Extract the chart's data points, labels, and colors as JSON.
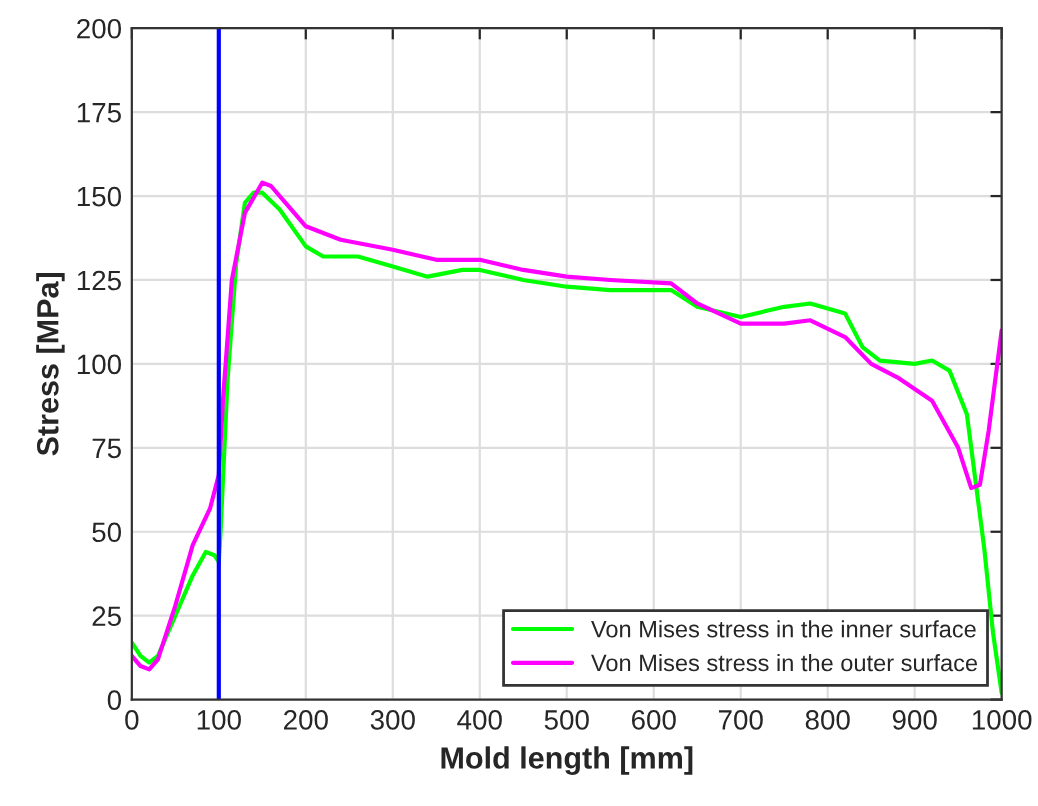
{
  "chart_data": {
    "type": "line",
    "xlabel": "Mold length [mm]",
    "ylabel": "Stress [MPa]",
    "xlim": [
      0,
      1000
    ],
    "xticks": [
      0,
      100,
      200,
      300,
      400,
      500,
      600,
      700,
      800,
      900,
      1000
    ],
    "ylim": [
      0,
      200
    ],
    "yticks": [
      0,
      25,
      50,
      75,
      100,
      125,
      150,
      175,
      200
    ],
    "grid": true,
    "legend": "bottom right",
    "line_style": "solid",
    "marker": "none",
    "ref_lines": [
      {
        "axis": "x",
        "value": 100,
        "color": "#0000ff"
      }
    ],
    "series": [
      {
        "name": "Von Mises stress in the inner surface",
        "color": "#00ff00",
        "x": [
          0,
          10,
          20,
          30,
          50,
          70,
          85,
          95,
          100,
          102,
          110,
          120,
          130,
          140,
          150,
          170,
          200,
          220,
          260,
          300,
          340,
          380,
          400,
          450,
          500,
          550,
          600,
          620,
          650,
          700,
          750,
          780,
          820,
          840,
          860,
          900,
          920,
          940,
          960,
          980,
          990,
          1000
        ],
        "values": [
          17,
          13,
          11,
          13,
          25,
          37,
          44,
          43,
          41,
          50,
          95,
          130,
          148,
          151,
          151,
          146,
          135,
          132,
          132,
          129,
          126,
          128,
          128,
          125,
          123,
          122,
          122,
          122,
          117,
          114,
          117,
          118,
          115,
          105,
          101,
          100,
          101,
          98,
          85,
          45,
          20,
          2
        ]
      },
      {
        "name": "Von Mises stress in the outer surface",
        "color": "#ff00ff",
        "x": [
          0,
          10,
          20,
          30,
          50,
          70,
          90,
          100,
          105,
          115,
          130,
          150,
          160,
          180,
          200,
          240,
          300,
          350,
          400,
          450,
          500,
          550,
          620,
          650,
          700,
          750,
          780,
          820,
          850,
          880,
          920,
          950,
          965,
          975,
          985,
          1000
        ],
        "values": [
          13,
          10,
          9,
          12,
          28,
          46,
          57,
          67,
          90,
          125,
          145,
          154,
          153,
          147,
          141,
          137,
          134,
          131,
          131,
          128,
          126,
          125,
          124,
          118,
          112,
          112,
          113,
          108,
          100,
          96,
          89,
          75,
          63,
          64,
          80,
          110
        ]
      }
    ]
  }
}
